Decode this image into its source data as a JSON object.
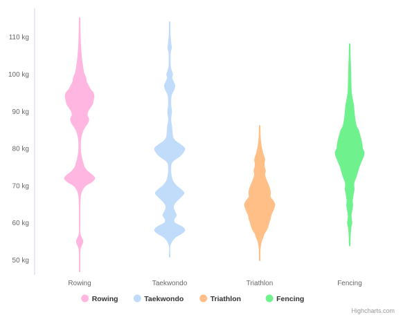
{
  "chart_data": {
    "type": "violin",
    "y_unit": "kg",
    "ylim": [
      46,
      117
    ],
    "y_ticks": [
      "50 kg",
      "60 kg",
      "70 kg",
      "80 kg",
      "90 kg",
      "100 kg",
      "110 kg"
    ],
    "y_tick_values": [
      50,
      60,
      70,
      80,
      90,
      100,
      110
    ],
    "grid": false,
    "legend_position": "bottom-center",
    "categories": [
      "Rowing",
      "Taekwondo",
      "Triathlon",
      "Fencing"
    ],
    "series": [
      {
        "name": "Rowing",
        "color": "#ffb6e1",
        "min": 47,
        "max": 115,
        "density": [
          [
            47,
            0
          ],
          [
            50,
            0.02
          ],
          [
            53,
            0.05
          ],
          [
            55,
            0.22
          ],
          [
            57,
            0.04
          ],
          [
            60,
            0.03
          ],
          [
            64,
            0.03
          ],
          [
            67,
            0.06
          ],
          [
            68.5,
            0.14
          ],
          [
            70,
            0.4
          ],
          [
            71,
            0.8
          ],
          [
            72,
            1.0
          ],
          [
            73,
            0.8
          ],
          [
            74,
            0.5
          ],
          [
            75,
            0.32
          ],
          [
            76,
            0.24
          ],
          [
            77,
            0.17
          ],
          [
            79,
            0.08
          ],
          [
            81,
            0.06
          ],
          [
            83,
            0.1
          ],
          [
            85,
            0.25
          ],
          [
            87,
            0.55
          ],
          [
            88,
            0.6
          ],
          [
            89,
            0.5
          ],
          [
            90,
            0.55
          ],
          [
            91,
            0.7
          ],
          [
            92,
            0.85
          ],
          [
            93,
            0.9
          ],
          [
            94,
            0.95
          ],
          [
            95,
            0.9
          ],
          [
            96,
            0.7
          ],
          [
            97,
            0.58
          ],
          [
            98,
            0.45
          ],
          [
            99,
            0.42
          ],
          [
            100,
            0.32
          ],
          [
            101,
            0.25
          ],
          [
            103,
            0.18
          ],
          [
            105,
            0.12
          ],
          [
            108,
            0.07
          ],
          [
            112,
            0.04
          ],
          [
            115,
            0
          ]
        ]
      },
      {
        "name": "Taekwondo",
        "color": "#c0dcfa",
        "min": 51,
        "max": 114,
        "density": [
          [
            51,
            0
          ],
          [
            54,
            0.04
          ],
          [
            56,
            0.35
          ],
          [
            57,
            0.75
          ],
          [
            58,
            1.0
          ],
          [
            59,
            0.8
          ],
          [
            60,
            0.35
          ],
          [
            61,
            0.3
          ],
          [
            62,
            0.45
          ],
          [
            63,
            0.35
          ],
          [
            64,
            0.25
          ],
          [
            65,
            0.3
          ],
          [
            66,
            0.5
          ],
          [
            67,
            0.75
          ],
          [
            68,
            0.95
          ],
          [
            69,
            0.75
          ],
          [
            70,
            0.45
          ],
          [
            71,
            0.25
          ],
          [
            72,
            0.15
          ],
          [
            74,
            0.08
          ],
          [
            76,
            0.12
          ],
          [
            77,
            0.35
          ],
          [
            78,
            0.7
          ],
          [
            79,
            0.9
          ],
          [
            80,
            1.0
          ],
          [
            81,
            0.75
          ],
          [
            82,
            0.4
          ],
          [
            83,
            0.22
          ],
          [
            85,
            0.16
          ],
          [
            86,
            0.14
          ],
          [
            87,
            0.1
          ],
          [
            88,
            0.08
          ],
          [
            90,
            0.13
          ],
          [
            92,
            0.08
          ],
          [
            94,
            0.1
          ],
          [
            95,
            0.18
          ],
          [
            96,
            0.3
          ],
          [
            97,
            0.35
          ],
          [
            98,
            0.25
          ],
          [
            99,
            0.15
          ],
          [
            100,
            0.2
          ],
          [
            101,
            0.12
          ],
          [
            102,
            0.06
          ],
          [
            104,
            0.04
          ],
          [
            106,
            0.06
          ],
          [
            107,
            0.12
          ],
          [
            108,
            0.1
          ],
          [
            110,
            0.05
          ],
          [
            112,
            0.03
          ],
          [
            114,
            0
          ]
        ]
      },
      {
        "name": "Triathlon",
        "color": "#ffbf86",
        "min": 50,
        "max": 86,
        "density": [
          [
            50,
            0
          ],
          [
            53,
            0.04
          ],
          [
            55,
            0.12
          ],
          [
            56,
            0.22
          ],
          [
            57,
            0.3
          ],
          [
            58,
            0.45
          ],
          [
            59,
            0.55
          ],
          [
            60,
            0.62
          ],
          [
            61,
            0.7
          ],
          [
            62,
            0.75
          ],
          [
            63,
            0.85
          ],
          [
            64,
            0.95
          ],
          [
            65,
            1.0
          ],
          [
            66,
            0.88
          ],
          [
            67,
            0.7
          ],
          [
            68,
            0.72
          ],
          [
            69,
            0.68
          ],
          [
            70,
            0.6
          ],
          [
            71,
            0.5
          ],
          [
            72,
            0.4
          ],
          [
            73,
            0.34
          ],
          [
            74,
            0.38
          ],
          [
            75,
            0.32
          ],
          [
            76,
            0.3
          ],
          [
            77,
            0.34
          ],
          [
            78,
            0.28
          ],
          [
            79,
            0.2
          ],
          [
            81,
            0.1
          ],
          [
            83,
            0.05
          ],
          [
            86,
            0
          ]
        ]
      },
      {
        "name": "Fencing",
        "color": "#6ff28d",
        "min": 54,
        "max": 108,
        "density": [
          [
            54,
            0
          ],
          [
            57,
            0.05
          ],
          [
            59,
            0.1
          ],
          [
            60,
            0.15
          ],
          [
            61,
            0.12
          ],
          [
            62,
            0.1
          ],
          [
            63,
            0.14
          ],
          [
            64,
            0.18
          ],
          [
            65,
            0.2
          ],
          [
            66,
            0.18
          ],
          [
            67,
            0.22
          ],
          [
            68,
            0.25
          ],
          [
            69,
            0.3
          ],
          [
            70,
            0.28
          ],
          [
            71,
            0.3
          ],
          [
            72,
            0.4
          ],
          [
            73,
            0.48
          ],
          [
            74,
            0.55
          ],
          [
            75,
            0.62
          ],
          [
            76,
            0.72
          ],
          [
            77,
            0.82
          ],
          [
            78,
            0.92
          ],
          [
            79,
            0.95
          ],
          [
            80,
            0.85
          ],
          [
            81,
            0.82
          ],
          [
            82,
            0.78
          ],
          [
            83,
            0.72
          ],
          [
            84,
            0.65
          ],
          [
            85,
            0.58
          ],
          [
            86,
            0.45
          ],
          [
            88,
            0.35
          ],
          [
            90,
            0.3
          ],
          [
            92,
            0.25
          ],
          [
            93,
            0.2
          ],
          [
            95,
            0.12
          ],
          [
            97,
            0.1
          ],
          [
            100,
            0.08
          ],
          [
            103,
            0.06
          ],
          [
            105,
            0.04
          ],
          [
            108,
            0
          ]
        ]
      }
    ]
  },
  "credits": "Highcharts.com"
}
